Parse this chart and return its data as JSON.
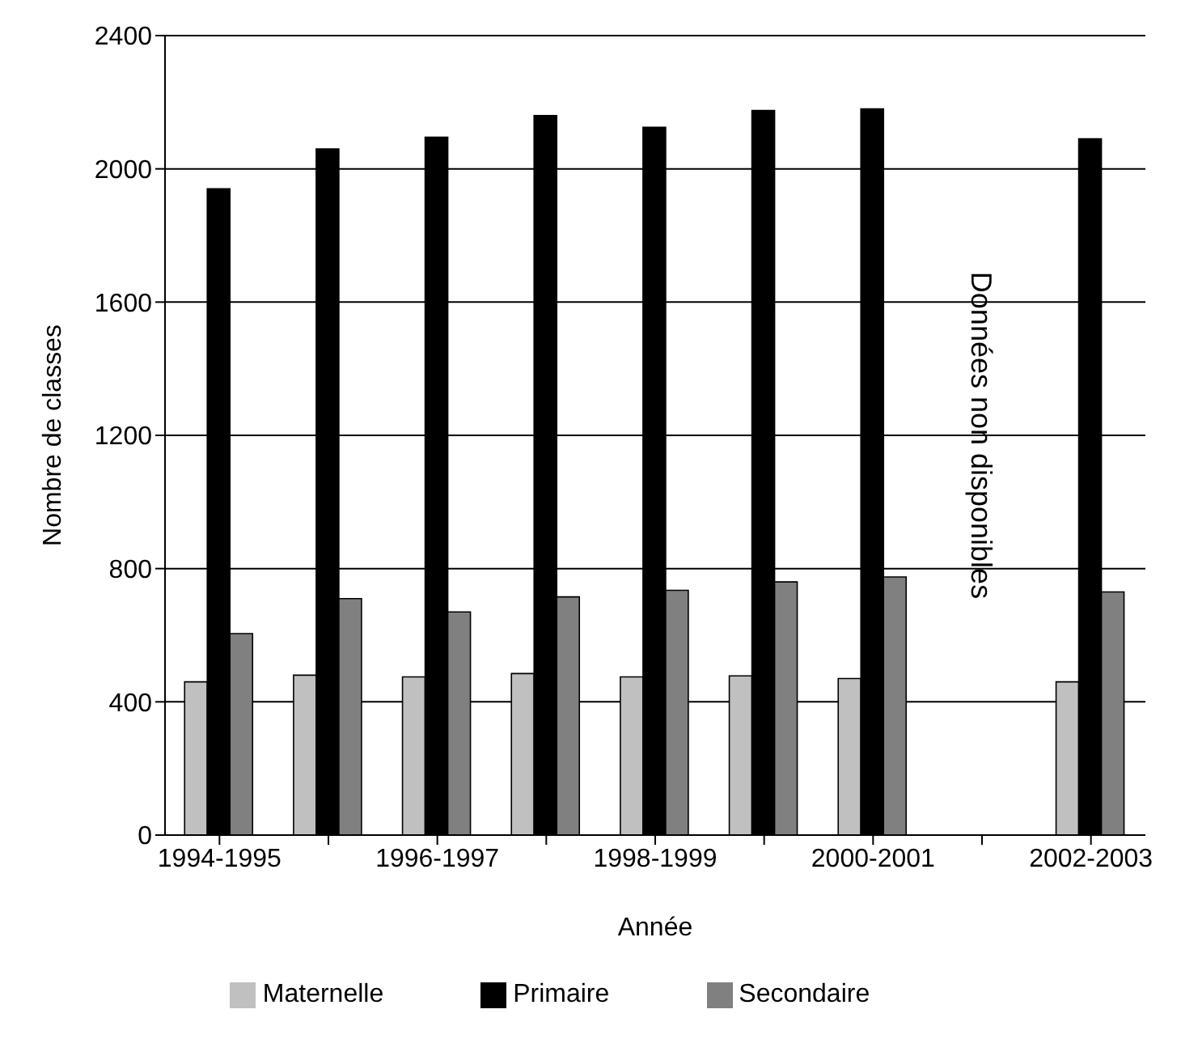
{
  "chart_data": {
    "type": "bar",
    "xlabel": "Année",
    "ylabel": "Nombre de classes",
    "categories": [
      "1994-1995",
      null,
      "1996-1997",
      null,
      "1998-1999",
      null,
      "2000-2001",
      null,
      "2002-2003"
    ],
    "series": [
      {
        "name": "Maternelle",
        "color": "#c0c0c0",
        "values": [
          460,
          480,
          475,
          485,
          475,
          478,
          470,
          null,
          460
        ]
      },
      {
        "name": "Primaire",
        "color": "#000000",
        "values": [
          1940,
          2060,
          2095,
          2160,
          2125,
          2175,
          2180,
          null,
          2090
        ]
      },
      {
        "name": "Secondaire",
        "color": "#808080",
        "values": [
          605,
          710,
          670,
          715,
          735,
          760,
          775,
          null,
          730
        ]
      }
    ],
    "ylim": [
      0,
      2400
    ],
    "yticks": [
      0,
      400,
      800,
      1200,
      1600,
      2000,
      2400
    ],
    "grid": "y",
    "legend": "bottom",
    "annotations": [
      "Données non disponibles"
    ]
  }
}
